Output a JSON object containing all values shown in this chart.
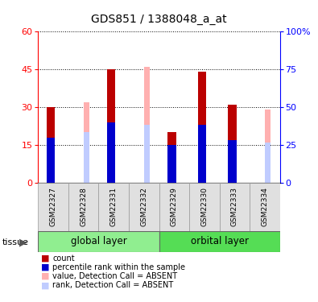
{
  "title": "GDS851 / 1388048_a_at",
  "samples": [
    "GSM22327",
    "GSM22328",
    "GSM22331",
    "GSM22332",
    "GSM22329",
    "GSM22330",
    "GSM22333",
    "GSM22334"
  ],
  "count_values": [
    30,
    0,
    45,
    0,
    20,
    44,
    31,
    0
  ],
  "rank_values": [
    18,
    0,
    24,
    0,
    15,
    23,
    17,
    0
  ],
  "absent_value": [
    0,
    32,
    0,
    46,
    0,
    0,
    0,
    29
  ],
  "absent_rank": [
    0,
    20,
    0,
    23,
    0,
    0,
    0,
    16
  ],
  "ylim_left": [
    0,
    60
  ],
  "ylim_right": [
    0,
    100
  ],
  "yticks_left": [
    0,
    15,
    30,
    45,
    60
  ],
  "yticks_right": [
    0,
    25,
    50,
    75,
    100
  ],
  "color_count": "#BB0000",
  "color_rank": "#0000CC",
  "color_absent_value": "#FFB0B0",
  "color_absent_rank": "#C0CCFF",
  "group_colors": [
    "#90EE90",
    "#55DD55"
  ],
  "group_labels": [
    "global layer",
    "orbital layer"
  ],
  "group_ranges": [
    [
      0,
      4
    ],
    [
      4,
      8
    ]
  ],
  "legend_items": [
    {
      "label": "count",
      "color": "#BB0000"
    },
    {
      "label": "percentile rank within the sample",
      "color": "#0000CC"
    },
    {
      "label": "value, Detection Call = ABSENT",
      "color": "#FFB0B0"
    },
    {
      "label": "rank, Detection Call = ABSENT",
      "color": "#C0CCFF"
    }
  ],
  "tissue_label": "tissue"
}
